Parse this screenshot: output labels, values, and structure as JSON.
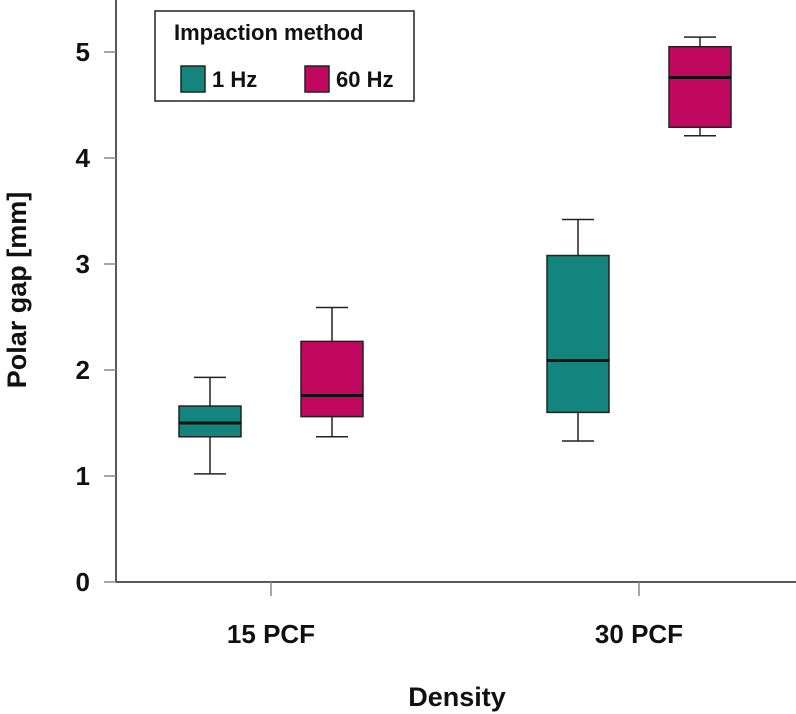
{
  "chart_data": {
    "type": "boxplot",
    "title": "",
    "xlabel": "Density",
    "ylabel": "Polar gap [mm]",
    "ylim": [
      0,
      5.5
    ],
    "yticks": [
      0,
      1,
      2,
      3,
      4,
      5
    ],
    "categories": [
      "15 PCF",
      "30 PCF"
    ],
    "legend": {
      "title": "Impaction method",
      "placement": "top-left"
    },
    "series": [
      {
        "name": "1 Hz",
        "color": "#14857c",
        "boxes": [
          {
            "category": "15 PCF",
            "min": 1.02,
            "q1": 1.37,
            "median": 1.5,
            "q3": 1.66,
            "max": 1.93
          },
          {
            "category": "30 PCF",
            "min": 1.33,
            "q1": 1.6,
            "median": 2.09,
            "q3": 3.08,
            "max": 3.42
          }
        ]
      },
      {
        "name": "60 Hz",
        "color": "#c0085f",
        "boxes": [
          {
            "category": "15 PCF",
            "min": 1.37,
            "q1": 1.56,
            "median": 1.76,
            "q3": 2.27,
            "max": 2.59
          },
          {
            "category": "30 PCF",
            "min": 4.21,
            "q1": 4.29,
            "median": 4.76,
            "q3": 5.05,
            "max": 5.14
          }
        ]
      }
    ]
  }
}
